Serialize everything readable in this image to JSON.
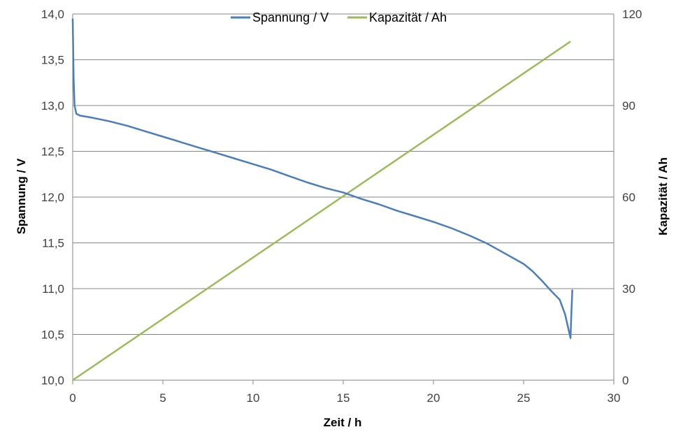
{
  "chart_data": {
    "type": "line",
    "xlabel": "Zeit / h",
    "ylabel": "Spannung / V",
    "y2label": "Kapazität / Ah",
    "xlim": [
      0,
      30
    ],
    "ylim": [
      10.0,
      14.0
    ],
    "y2lim": [
      0,
      120
    ],
    "xticks": [
      "0",
      "5",
      "10",
      "15",
      "20",
      "25",
      "30"
    ],
    "yticks": [
      "10,0",
      "10,5",
      "11,0",
      "11,5",
      "12,0",
      "12,5",
      "13,0",
      "13,5",
      "14,0"
    ],
    "y2ticks": [
      "0",
      "30",
      "60",
      "90",
      "120"
    ],
    "grid": "horizontal",
    "legend_position": "top-center",
    "series": [
      {
        "name": "Spannung / V",
        "axis": "left",
        "color": "#4a7ebb",
        "x": [
          0.0,
          0.05,
          0.1,
          0.2,
          0.4,
          1,
          2,
          3,
          4,
          5,
          6,
          7,
          8,
          9,
          10,
          11,
          12,
          13,
          14,
          15,
          16,
          17,
          18,
          19,
          20,
          21,
          22,
          23,
          24,
          25,
          25.5,
          26,
          26.5,
          27.0,
          27.3,
          27.6,
          27.65,
          27.7
        ],
        "values": [
          13.95,
          13.3,
          13.0,
          12.91,
          12.89,
          12.87,
          12.83,
          12.78,
          12.72,
          12.66,
          12.6,
          12.54,
          12.48,
          12.42,
          12.36,
          12.3,
          12.23,
          12.16,
          12.1,
          12.05,
          11.98,
          11.92,
          11.85,
          11.79,
          11.73,
          11.66,
          11.58,
          11.49,
          11.38,
          11.27,
          11.19,
          11.09,
          10.98,
          10.88,
          10.72,
          10.46,
          10.75,
          10.99
        ]
      },
      {
        "name": "Kapazität / Ah",
        "axis": "right",
        "color": "#9bbb59",
        "x": [
          0,
          27.6
        ],
        "values": [
          0,
          111
        ]
      }
    ]
  }
}
